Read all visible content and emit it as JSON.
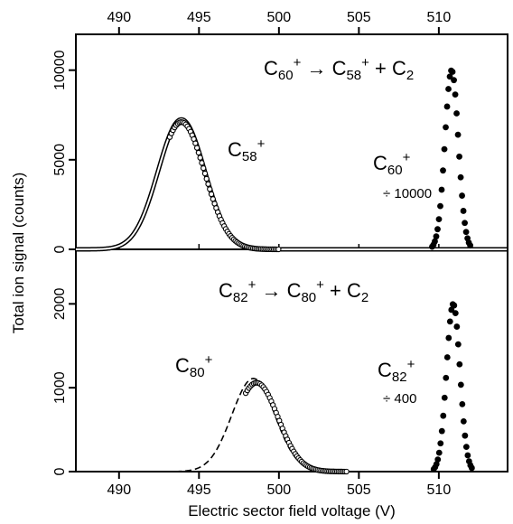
{
  "chart_data": {
    "type": "scatter",
    "xlabel": "Electric sector field voltage (V)",
    "ylabel": "Total ion signal (counts)",
    "xlim": [
      487.3,
      514.3
    ],
    "x_ticks": [
      490,
      495,
      500,
      505,
      510
    ],
    "x_tick_labels": [
      "490",
      "495",
      "500",
      "505",
      "510"
    ],
    "grid": false,
    "panels": [
      {
        "position": "top",
        "ylim": [
          0,
          12000
        ],
        "y_ticks": [
          0,
          5000,
          10000
        ],
        "y_tick_labels": [
          "0",
          "5000",
          "10000"
        ],
        "reaction": {
          "parent": "60",
          "fragment": "58",
          "neutral": "2"
        },
        "fragment_peak": {
          "label_sub": "58",
          "center": 493.9,
          "sigma": 1.45,
          "amplitude": 7100,
          "marker": "open"
        },
        "fit_curve": {
          "center": 493.9,
          "sigma": 1.45,
          "amplitude": 7250,
          "style": "double-line"
        },
        "parent_peak": {
          "label_sub": "60",
          "center": 510.8,
          "sigma": 0.42,
          "amplitude": 10000,
          "marker": "filled",
          "scale_note": "÷ 10000"
        }
      },
      {
        "position": "bottom",
        "ylim": [
          0,
          2650
        ],
        "y_ticks": [
          0,
          1000,
          2000
        ],
        "y_tick_labels": [
          "0",
          "1000",
          "2000"
        ],
        "reaction": {
          "parent": "82",
          "fragment": "80",
          "neutral": "2"
        },
        "fragment_peak": {
          "label_sub": "80",
          "center": 498.6,
          "sigma": 1.35,
          "amplitude": 1060,
          "marker": "open"
        },
        "fit_curve": {
          "center": 498.4,
          "sigma": 1.35,
          "amplitude": 1110,
          "style": "dashed"
        },
        "parent_peak": {
          "label_sub": "82",
          "center": 510.9,
          "sigma": 0.42,
          "amplitude": 2000,
          "marker": "filled",
          "scale_note": "÷ 400"
        }
      }
    ]
  }
}
